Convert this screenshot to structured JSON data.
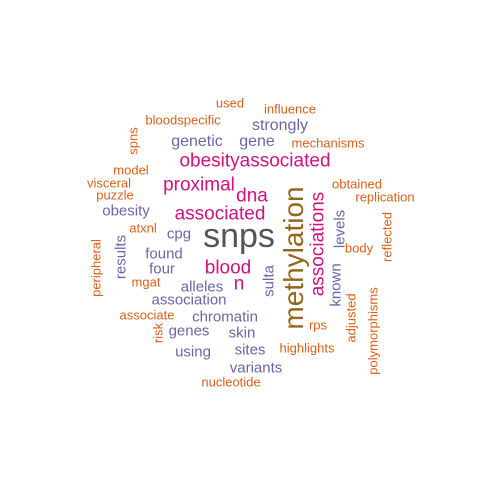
{
  "palette": {
    "gray": "#555555",
    "brown": "#94671f",
    "magenta": "#d1127d",
    "purple": "#6a66a8",
    "orange": "#d9601a"
  },
  "words": [
    {
      "text": "snps",
      "color": "gray",
      "rot": 0
    },
    {
      "text": "methylation",
      "color": "brown",
      "rot": 90
    },
    {
      "text": "obesityassociated",
      "color": "magenta",
      "rot": 0
    },
    {
      "text": "proximal",
      "color": "magenta",
      "rot": 0
    },
    {
      "text": "associated",
      "color": "magenta",
      "rot": 0
    },
    {
      "text": "associations",
      "color": "magenta",
      "rot": 90
    },
    {
      "text": "dna",
      "color": "magenta",
      "rot": 0
    },
    {
      "text": "blood",
      "color": "magenta",
      "rot": 0
    },
    {
      "text": "n",
      "color": "magenta",
      "rot": 0
    },
    {
      "text": "genetic",
      "color": "purple",
      "rot": 0
    },
    {
      "text": "gene",
      "color": "purple",
      "rot": 0
    },
    {
      "text": "strongly",
      "color": "purple",
      "rot": 0
    },
    {
      "text": "obesity",
      "color": "purple",
      "rot": 0
    },
    {
      "text": "cpg",
      "color": "purple",
      "rot": 0
    },
    {
      "text": "found",
      "color": "purple",
      "rot": 0
    },
    {
      "text": "four",
      "color": "purple",
      "rot": 0
    },
    {
      "text": "results",
      "color": "purple",
      "rot": 90
    },
    {
      "text": "alleles",
      "color": "purple",
      "rot": 0
    },
    {
      "text": "association",
      "color": "purple",
      "rot": 0
    },
    {
      "text": "chromatin",
      "color": "purple",
      "rot": 0
    },
    {
      "text": "genes",
      "color": "purple",
      "rot": 0
    },
    {
      "text": "skin",
      "color": "purple",
      "rot": 0
    },
    {
      "text": "using",
      "color": "purple",
      "rot": 0
    },
    {
      "text": "sites",
      "color": "purple",
      "rot": 0
    },
    {
      "text": "variants",
      "color": "purple",
      "rot": 0
    },
    {
      "text": "sulta",
      "color": "purple",
      "rot": 90
    },
    {
      "text": "known",
      "color": "purple",
      "rot": 90
    },
    {
      "text": "levels",
      "color": "purple",
      "rot": 90
    },
    {
      "text": "used",
      "color": "orange",
      "rot": 0
    },
    {
      "text": "influence",
      "color": "orange",
      "rot": 0
    },
    {
      "text": "bloodspecific",
      "color": "orange",
      "rot": 0
    },
    {
      "text": "mechanisms",
      "color": "orange",
      "rot": 0
    },
    {
      "text": "spns",
      "color": "orange",
      "rot": 90
    },
    {
      "text": "model",
      "color": "orange",
      "rot": 0
    },
    {
      "text": "visceral",
      "color": "orange",
      "rot": 0
    },
    {
      "text": "puzzle",
      "color": "orange",
      "rot": 0
    },
    {
      "text": "obtained",
      "color": "orange",
      "rot": 0
    },
    {
      "text": "replication",
      "color": "orange",
      "rot": 0
    },
    {
      "text": "atxnl",
      "color": "orange",
      "rot": 0
    },
    {
      "text": "body",
      "color": "orange",
      "rot": 0
    },
    {
      "text": "reflected",
      "color": "orange",
      "rot": 90
    },
    {
      "text": "peripheral",
      "color": "orange",
      "rot": 90
    },
    {
      "text": "mgat",
      "color": "orange",
      "rot": 0
    },
    {
      "text": "associate",
      "color": "orange",
      "rot": 0
    },
    {
      "text": "risk",
      "color": "orange",
      "rot": 90
    },
    {
      "text": "rps",
      "color": "orange",
      "rot": 0
    },
    {
      "text": "adjusted",
      "color": "orange",
      "rot": 90
    },
    {
      "text": "polymorphisms",
      "color": "orange",
      "rot": 90
    },
    {
      "text": "highlights",
      "color": "orange",
      "rot": 0
    },
    {
      "text": "nucleotide",
      "color": "orange",
      "rot": 0
    }
  ]
}
